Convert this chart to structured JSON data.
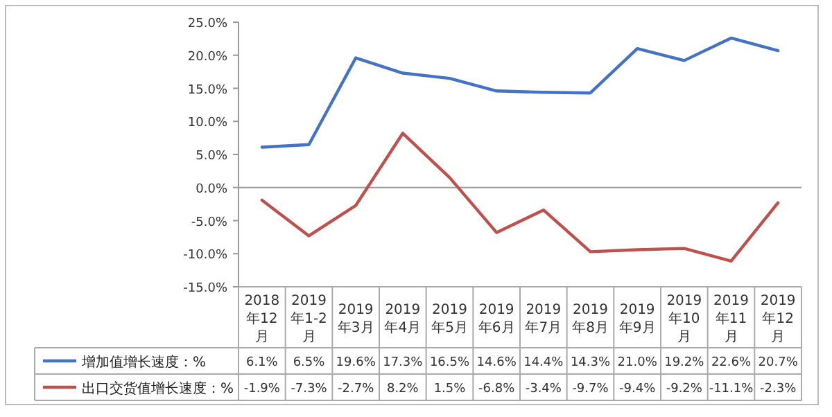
{
  "chart_data": {
    "type": "line",
    "categories": [
      "2018年12月",
      "2019年1-2月",
      "2019年3月",
      "2019年4月",
      "2019年5月",
      "2019年6月",
      "2019年7月",
      "2019年8月",
      "2019年9月",
      "2019年10月",
      "2019年11月",
      "2019年12月"
    ],
    "series": [
      {
        "name": "增加值增长速度：%",
        "color": "#4472c4",
        "values": [
          6.1,
          6.5,
          19.6,
          17.3,
          16.5,
          14.6,
          14.4,
          14.3,
          21.0,
          19.2,
          22.6,
          20.7
        ],
        "value_labels": [
          "6.1%",
          "6.5%",
          "19.6%",
          "17.3%",
          "16.5%",
          "14.6%",
          "14.4%",
          "14.3%",
          "21.0%",
          "19.2%",
          "22.6%",
          "20.7%"
        ]
      },
      {
        "name": "出口交货值增长速度：%",
        "color": "#c0504d",
        "values": [
          -1.9,
          -7.3,
          -2.7,
          8.2,
          1.5,
          -6.8,
          -3.4,
          -9.7,
          -9.4,
          -9.2,
          -11.1,
          -2.3
        ],
        "value_labels": [
          "-1.9%",
          "-7.3%",
          "-2.7%",
          "8.2%",
          "1.5%",
          "-6.8%",
          "-3.4%",
          "-9.7%",
          "-9.4%",
          "-9.2%",
          "-11.1%",
          "-2.3%"
        ]
      }
    ],
    "ylim": [
      -15,
      25
    ],
    "yticks": [
      {
        "value": -15,
        "label": "-15.0%"
      },
      {
        "value": -10,
        "label": "-10.0%"
      },
      {
        "value": -5,
        "label": "-5.0%"
      },
      {
        "value": 0,
        "label": "0.0%"
      },
      {
        "value": 5,
        "label": "5.0%"
      },
      {
        "value": 10,
        "label": "10.0%"
      },
      {
        "value": 15,
        "label": "15.0%"
      },
      {
        "value": 20,
        "label": "20.0%"
      },
      {
        "value": 25,
        "label": "25.0%"
      }
    ],
    "legend": "bottom",
    "line_style": "solid",
    "marker": "none"
  }
}
